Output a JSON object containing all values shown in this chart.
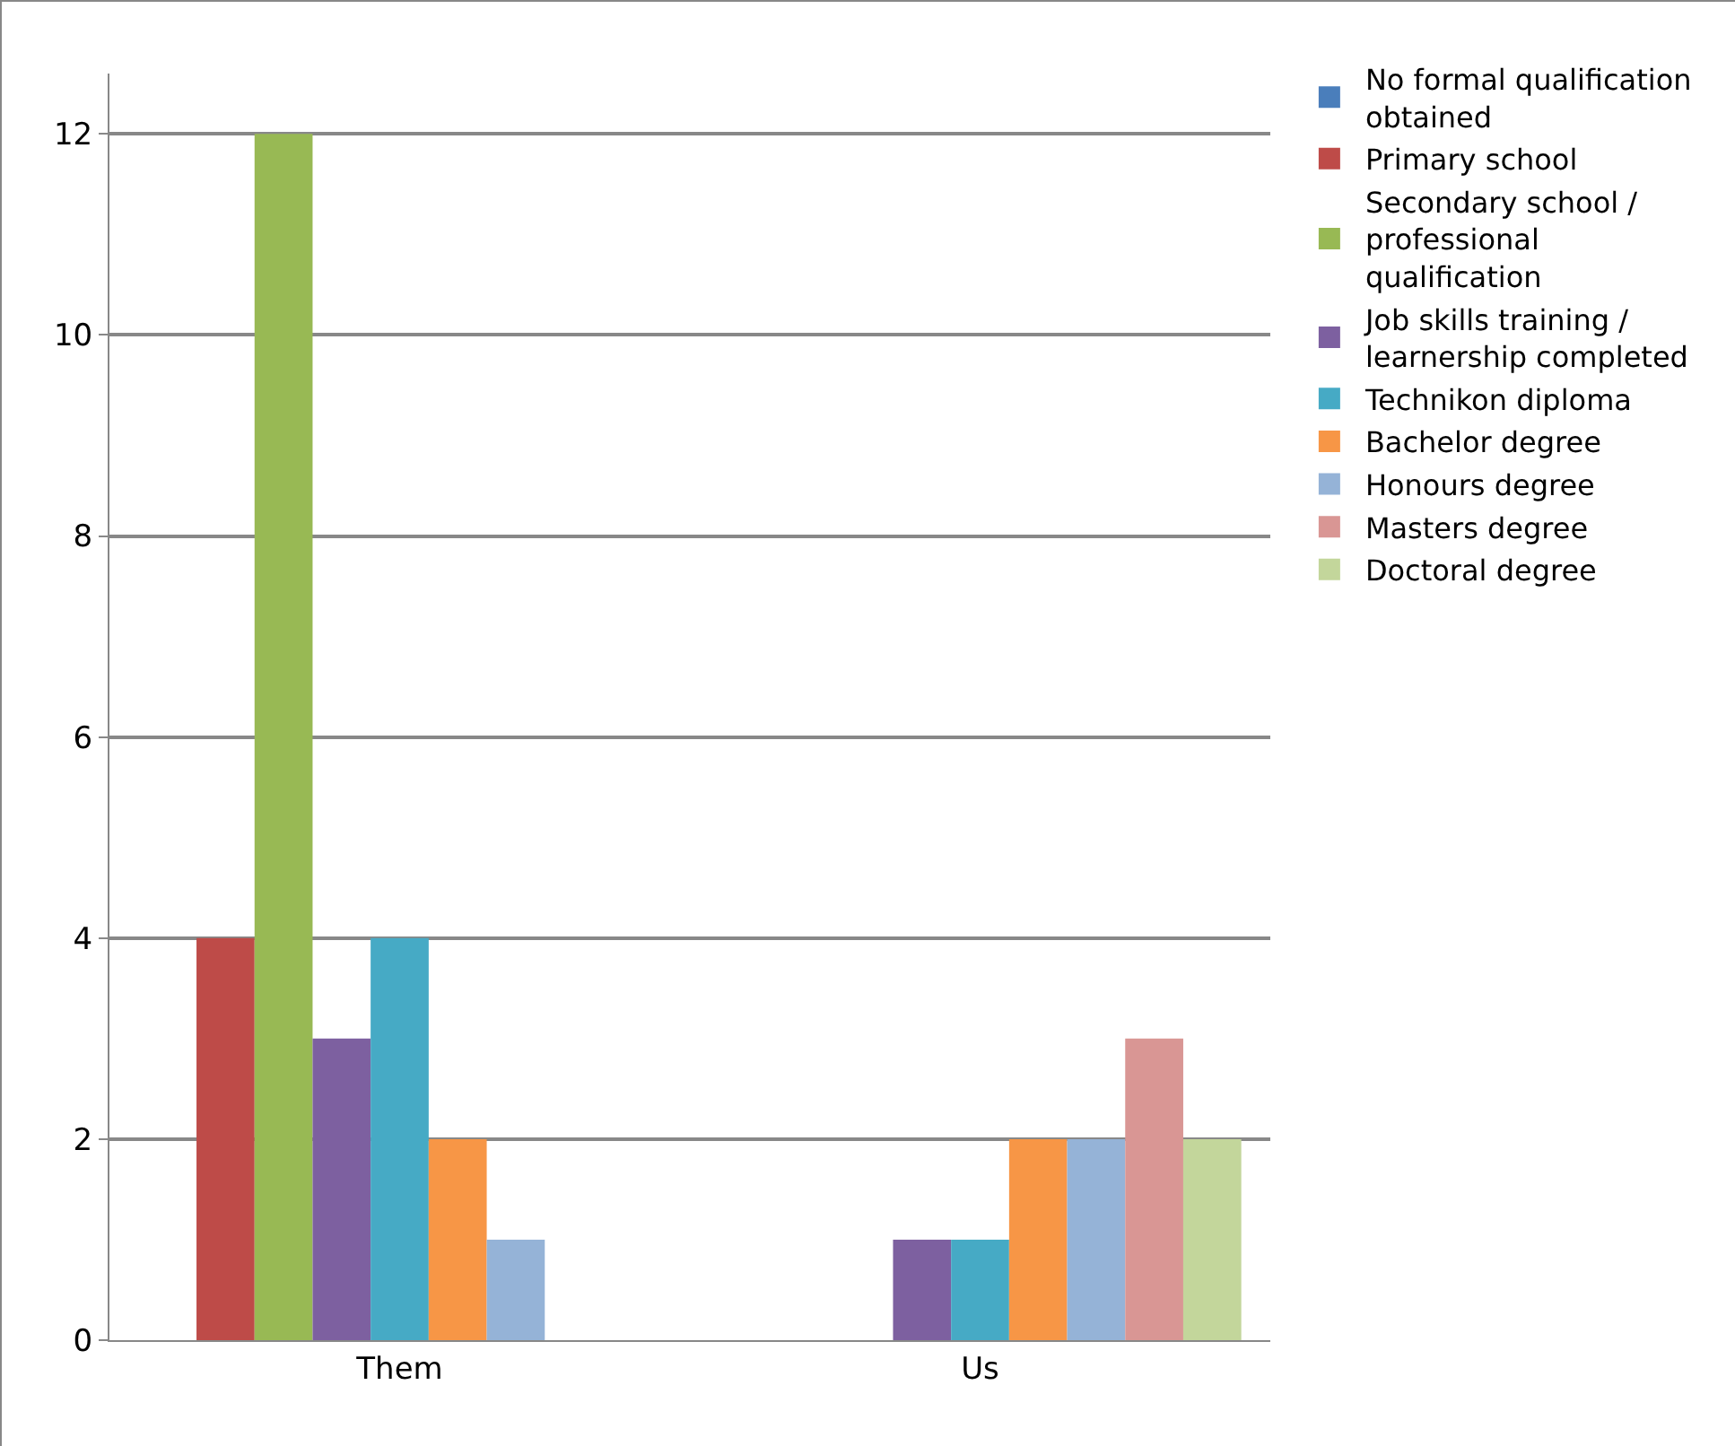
{
  "chart_data": {
    "type": "bar",
    "categories": [
      "Them",
      "Us"
    ],
    "series": [
      {
        "name": "No formal qualification obtained",
        "color": "#4a7ebb",
        "values": [
          0,
          0
        ]
      },
      {
        "name": "Primary school",
        "color": "#be4b48",
        "values": [
          4,
          0
        ]
      },
      {
        "name": "Secondary school / professional qualification",
        "color": "#98b954",
        "values": [
          12,
          0
        ]
      },
      {
        "name": "Job skills training / learnership completed",
        "color": "#7d60a0",
        "values": [
          3,
          1
        ]
      },
      {
        "name": "Technikon diploma",
        "color": "#46aac5",
        "values": [
          4,
          1
        ]
      },
      {
        "name": "Bachelor degree",
        "color": "#f79646",
        "values": [
          2,
          2
        ]
      },
      {
        "name": "Honours degree",
        "color": "#95b3d7",
        "values": [
          1,
          2
        ]
      },
      {
        "name": "Masters degree",
        "color": "#d99694",
        "values": [
          0,
          3
        ]
      },
      {
        "name": "Doctoral degree",
        "color": "#c3d69b",
        "values": [
          0,
          2
        ]
      }
    ],
    "ylim": [
      0,
      12.6
    ],
    "yticks": [
      0,
      2,
      4,
      6,
      8,
      10,
      12
    ],
    "grid": "y",
    "legend": "right"
  }
}
